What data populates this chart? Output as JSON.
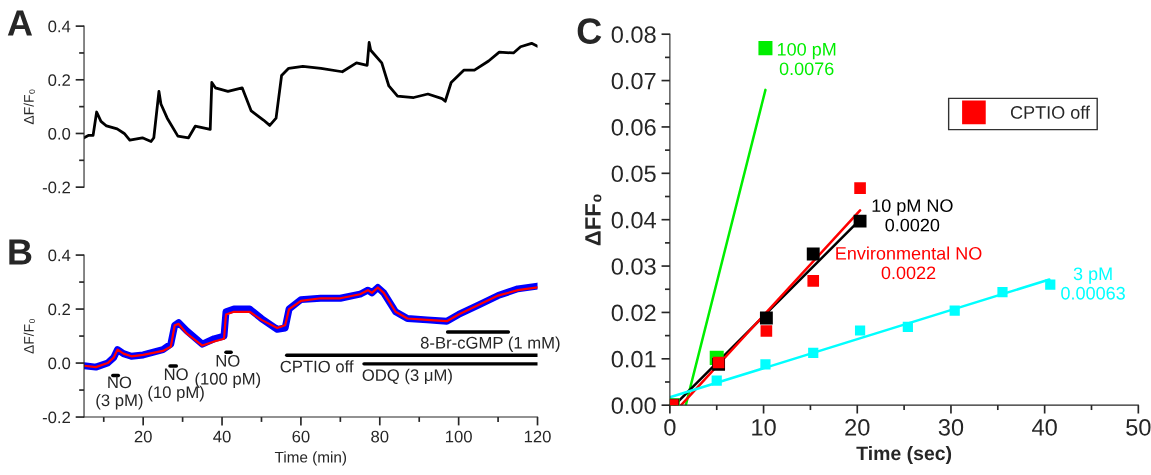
{
  "chart_data": [
    {
      "type": "line",
      "title": "A",
      "ylabel": "ΔF/F₀",
      "xlim": [
        5,
        120
      ],
      "ylim": [
        -0.2,
        0.4
      ],
      "yticks": [
        {
          "value": -0.2,
          "label": "-0.2"
        },
        {
          "value": -0.1,
          "label": null
        },
        {
          "value": 0,
          "label": "0.0"
        },
        {
          "value": 0.1,
          "label": null
        },
        {
          "value": 0.2,
          "label": "0.2"
        },
        {
          "value": 0.3,
          "label": null
        },
        {
          "value": 0.4,
          "label": "0.4"
        }
      ],
      "tick_labels": "y",
      "grid": false,
      "legend": false,
      "series": [
        {
          "color": "#000000",
          "x": [
            5,
            6.2,
            7.3,
            8.2,
            9.3,
            10.7,
            13.4,
            15.2,
            16.6,
            19.8,
            22.0,
            22.7,
            24.0,
            24.5,
            26.1,
            28.8,
            31.5,
            33.2,
            37.0,
            37.4,
            38.3,
            41.5,
            45.1,
            47.4,
            50.5,
            52.1,
            53.7,
            55.1,
            56.9,
            60.5,
            65.1,
            70.5,
            74.1,
            76.8,
            77.3,
            77.7,
            80.5,
            82.3,
            84.5,
            88.6,
            92.2,
            95.8,
            96.6,
            98.1,
            101.3,
            104.0,
            107.6,
            110.3,
            113.9,
            115.7,
            118.5,
            120
          ],
          "values": [
            -0.016,
            -0.007,
            -0.007,
            0.08,
            0.045,
            0.028,
            0.017,
            0.0,
            -0.025,
            -0.016,
            -0.03,
            -0.016,
            0.157,
            0.11,
            0.057,
            -0.01,
            -0.016,
            0.027,
            0.015,
            0.19,
            0.17,
            0.157,
            0.17,
            0.084,
            0.05,
            0.03,
            0.057,
            0.216,
            0.243,
            0.25,
            0.243,
            0.23,
            0.263,
            0.254,
            0.339,
            0.31,
            0.263,
            0.177,
            0.139,
            0.134,
            0.147,
            0.13,
            0.12,
            0.19,
            0.236,
            0.236,
            0.27,
            0.303,
            0.3,
            0.323,
            0.336,
            0.325
          ]
        }
      ]
    },
    {
      "type": "line",
      "title": "B",
      "xlabel": "Time (min)",
      "ylabel": "ΔF/F₀",
      "xlim": [
        5,
        120
      ],
      "ylim": [
        -0.2,
        0.4
      ],
      "xticks": [
        {
          "value": 10,
          "label": null
        },
        20,
        {
          "value": 30,
          "label": null
        },
        40,
        {
          "value": 50,
          "label": null
        },
        60,
        {
          "value": 70,
          "label": null
        },
        80,
        {
          "value": 90,
          "label": null
        },
        100,
        {
          "value": 110,
          "label": null
        },
        120
      ],
      "yticks": [
        {
          "value": -0.2,
          "label": "-0.2"
        },
        {
          "value": -0.1,
          "label": null
        },
        {
          "value": 0,
          "label": "0.0"
        },
        {
          "value": 0.1,
          "label": null
        },
        {
          "value": 0.2,
          "label": "0.2"
        },
        {
          "value": 0.3,
          "label": null
        },
        {
          "value": 0.4,
          "label": "0.4"
        }
      ],
      "grid": false,
      "legend": false,
      "series": [
        {
          "color": "#0000ff",
          "x": [
            5,
            8,
            11,
            12.5,
            13.5,
            15,
            17,
            20,
            25,
            27,
            28,
            29,
            31,
            35,
            38,
            40.5,
            41,
            43,
            47,
            50,
            54,
            56,
            57,
            60,
            65,
            70,
            75,
            77,
            78,
            79.5,
            81,
            84,
            87,
            92,
            97,
            100,
            105,
            110,
            115,
            120
          ],
          "values": [
            -0.01,
            -0.015,
            0.0,
            0.02,
            0.05,
            0.035,
            0.025,
            0.03,
            0.05,
            0.07,
            0.14,
            0.15,
            0.12,
            0.07,
            0.09,
            0.1,
            0.19,
            0.2,
            0.2,
            0.165,
            0.125,
            0.13,
            0.2,
            0.235,
            0.24,
            0.24,
            0.255,
            0.27,
            0.26,
            0.28,
            0.26,
            0.19,
            0.165,
            0.16,
            0.155,
            0.18,
            0.215,
            0.25,
            0.275,
            0.285
          ]
        },
        {
          "color": "#ff0000",
          "x": [
            5,
            8,
            11,
            12.5,
            13.5,
            15,
            17,
            20,
            25,
            27,
            28,
            29,
            31,
            35,
            38,
            40.5,
            41,
            43,
            47,
            50,
            54,
            56,
            57,
            60,
            65,
            70,
            75,
            77,
            78,
            79.5,
            81,
            84,
            87,
            92,
            97,
            100,
            105,
            110,
            115,
            120
          ],
          "values": [
            -0.01,
            -0.015,
            0.0,
            0.02,
            0.05,
            0.035,
            0.025,
            0.03,
            0.045,
            0.06,
            0.14,
            0.145,
            0.11,
            0.065,
            0.08,
            0.09,
            0.18,
            0.19,
            0.19,
            0.16,
            0.13,
            0.14,
            0.2,
            0.23,
            0.24,
            0.24,
            0.255,
            0.27,
            0.26,
            0.28,
            0.26,
            0.19,
            0.165,
            0.16,
            0.155,
            0.18,
            0.215,
            0.25,
            0.27,
            0.28
          ]
        },
        {
          "color": "#000000",
          "x": [
            12.3,
            13.7
          ],
          "values": [
            -0.046,
            -0.046
          ]
        },
        {
          "color": "#000000",
          "x": [
            26.8,
            28.4
          ],
          "values": [
            -0.011,
            -0.011
          ]
        },
        {
          "color": "#000000",
          "x": [
            41.0,
            42.3
          ],
          "values": [
            0.04,
            0.04
          ]
        },
        {
          "color": "#000000",
          "x": [
            56.4,
            120
          ],
          "values": [
            0.029,
            0.029
          ]
        },
        {
          "color": "#000000",
          "x": [
            76.0,
            120
          ],
          "values": [
            -0.003,
            -0.003
          ]
        },
        {
          "color": "#000000",
          "x": [
            97.2,
            112.6
          ],
          "values": [
            0.115,
            0.115
          ]
        }
      ],
      "annotations": [
        "NO\n(3 pM)",
        "NO\n(10 pM)",
        "NO\n(100 pM)",
        "CPTIO off",
        "ODQ (3 μM)",
        "8-Br-cGMP (1 mM)"
      ]
    },
    {
      "type": "scatter",
      "title": "C",
      "xlabel": "Time (sec)",
      "ylabel": "ΔFF₀",
      "xlim": [
        0,
        50
      ],
      "ylim": [
        0,
        0.08
      ],
      "xticks": [
        0,
        {
          "value": 5,
          "label": null
        },
        10,
        {
          "value": 15,
          "label": null
        },
        20,
        {
          "value": 25,
          "label": null
        },
        30,
        {
          "value": 35,
          "label": null
        },
        40,
        {
          "value": 45,
          "label": null
        },
        50
      ],
      "yticks": [
        {
          "value": 0,
          "label": "0.00"
        },
        {
          "value": 0.005,
          "label": null
        },
        {
          "value": 0.01,
          "label": "0.01"
        },
        {
          "value": 0.015,
          "label": null
        },
        {
          "value": 0.02,
          "label": "0.02"
        },
        {
          "value": 0.025,
          "label": null
        },
        {
          "value": 0.03,
          "label": "0.03"
        },
        {
          "value": 0.035,
          "label": null
        },
        {
          "value": 0.04,
          "label": "0.04"
        },
        {
          "value": 0.045,
          "label": null
        },
        {
          "value": 0.05,
          "label": "0.05"
        },
        {
          "value": 0.055,
          "label": null
        },
        {
          "value": 0.06,
          "label": "0.06"
        },
        {
          "value": 0.065,
          "label": null
        },
        {
          "value": 0.07,
          "label": "0.07"
        },
        {
          "value": 0.075,
          "label": null
        },
        {
          "value": 0.08,
          "label": "0.08"
        }
      ],
      "grid": false,
      "legend": "top right",
      "series": [
        {
          "type": "line",
          "name": "100 pM\n0.0076",
          "color": "#00ee00",
          "x": [
            1.7,
            10.2
          ],
          "values": [
            0,
            0.068
          ]
        },
        {
          "type": "scatter",
          "marker": "square",
          "color": "#00ee00",
          "x": [
            0.3,
            5.0,
            10.2
          ],
          "values": [
            0,
            0.0102,
            0.077
          ]
        },
        {
          "type": "line",
          "name": "10 pM NO\n0.0020",
          "color": "#000000",
          "x": [
            0.5,
            20.3
          ],
          "values": [
            0,
            0.04
          ]
        },
        {
          "type": "scatter",
          "marker": "square",
          "color": "#000000",
          "x": [
            0.3,
            5.2,
            10.3,
            15.3,
            20.3
          ],
          "values": [
            0,
            0.0088,
            0.0188,
            0.0326,
            0.0397
          ]
        },
        {
          "type": "line",
          "name": "Environmental NO\n0.0022",
          "color": "#ff0000",
          "x": [
            1.2,
            20.3
          ],
          "values": [
            0,
            0.042
          ]
        },
        {
          "type": "scatter",
          "marker": "square",
          "name": "CPTIO off",
          "color": "#ff0000",
          "x": [
            0.3,
            5.2,
            10.3,
            15.3,
            20.3
          ],
          "values": [
            0,
            0.0092,
            0.016,
            0.0268,
            0.0468
          ]
        },
        {
          "type": "line",
          "name": "3 pM\n0.00063",
          "color": "#00ffff",
          "x": [
            0,
            40.5
          ],
          "values": [
            0.0017,
            0.0271
          ]
        },
        {
          "type": "scatter",
          "marker": "square",
          "color": "#00ffff",
          "x": [
            5.0,
            10.2,
            15.3,
            20.3,
            25.4,
            30.4,
            35.5,
            40.6
          ],
          "values": [
            0.0053,
            0.0088,
            0.0113,
            0.0161,
            0.0169,
            0.0204,
            0.0244,
            0.026
          ]
        }
      ]
    }
  ]
}
